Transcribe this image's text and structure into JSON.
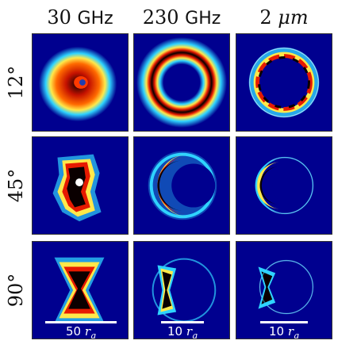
{
  "columns": [
    {
      "value": "30",
      "unit": "GHz"
    },
    {
      "value": "230",
      "unit": "GHz"
    },
    {
      "value": "2",
      "unit": "μm"
    }
  ],
  "rows": [
    {
      "label": "12°"
    },
    {
      "label": "45°"
    },
    {
      "label": "90°"
    }
  ],
  "scale_bars": [
    {
      "value": "50",
      "unit": "r",
      "subscript": "g"
    },
    {
      "value": "10",
      "unit": "r",
      "subscript": "g"
    },
    {
      "value": "10",
      "unit": "r",
      "subscript": "g"
    }
  ],
  "colors": {
    "background": "#00008f",
    "cyan": "#2fd3ff",
    "yellow": "#ffe84a",
    "red": "#e61a00",
    "black": "#0a0000"
  }
}
